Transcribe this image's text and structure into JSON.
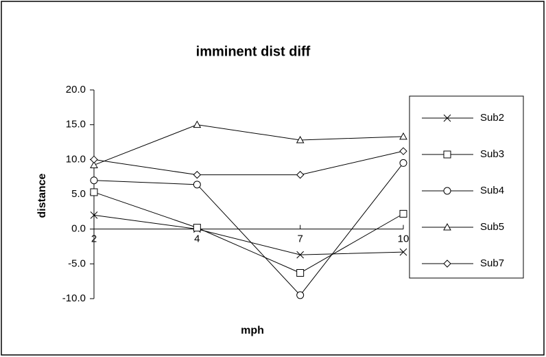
{
  "chart_data": {
    "type": "line",
    "title": "imminent dist diff",
    "x_label": "mph",
    "y_label": "distance",
    "categories": [
      "2",
      "4",
      "7",
      "10"
    ],
    "ylim": [
      -10,
      20
    ],
    "yticks": [
      {
        "value": -10,
        "label": "-10.0"
      },
      {
        "value": -5,
        "label": "-5.0"
      },
      {
        "value": 0,
        "label": "0.0"
      },
      {
        "value": 5,
        "label": "5.0"
      },
      {
        "value": 10,
        "label": "10.0"
      },
      {
        "value": 15,
        "label": "15.0"
      },
      {
        "value": 20,
        "label": "20.0"
      }
    ],
    "legend": "right",
    "series": [
      {
        "name": "Sub2",
        "color": "#000000",
        "marker": "x",
        "values": [
          2.0,
          0.0,
          -3.7,
          -3.3
        ]
      },
      {
        "name": "Sub3",
        "color": "#000000",
        "marker": "square",
        "values": [
          5.3,
          0.2,
          -6.3,
          2.2
        ]
      },
      {
        "name": "Sub4",
        "color": "#000000",
        "marker": "circle",
        "values": [
          7.0,
          6.4,
          -9.5,
          9.5
        ]
      },
      {
        "name": "Sub5",
        "color": "#000000",
        "marker": "triangle",
        "values": [
          9.2,
          15.0,
          12.8,
          13.3
        ]
      },
      {
        "name": "Sub7",
        "color": "#000000",
        "marker": "diamond",
        "values": [
          10.0,
          7.8,
          7.8,
          11.2
        ]
      }
    ]
  }
}
